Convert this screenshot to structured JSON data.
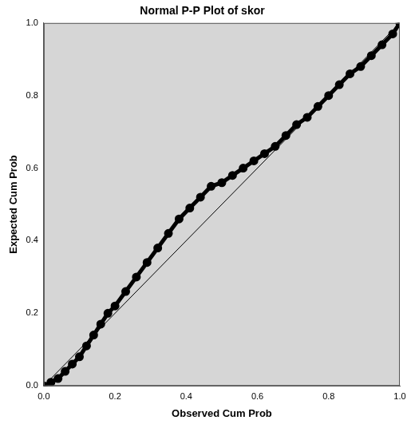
{
  "chart_data": {
    "type": "scatter",
    "title": "Normal P-P Plot of skor",
    "x_label": "Observed Cum Prob",
    "y_label": "Expected Cum Prob",
    "xlim": [
      0,
      1
    ],
    "ylim": [
      0,
      1
    ],
    "xticks": [
      {
        "value": 0,
        "label": "0.0"
      },
      0.2,
      0.4,
      0.6,
      0.8,
      {
        "value": 1,
        "label": "1.0"
      }
    ],
    "yticks": [
      {
        "value": 0,
        "label": "0.0"
      },
      0.2,
      0.4,
      0.6,
      0.8,
      {
        "value": 1,
        "label": "1.0"
      }
    ],
    "grid": false,
    "series": [
      {
        "color": "#000000",
        "marker": "circle",
        "line_style": "solid",
        "x": [
          0,
          0.02,
          0.04,
          0.06,
          0.08,
          0.1,
          0.12,
          0.14,
          0.16,
          0.18,
          0.2,
          0.23,
          0.26,
          0.29,
          0.32,
          0.35,
          0.38,
          0.41,
          0.44,
          0.47,
          0.5,
          0.53,
          0.56,
          0.59,
          0.62,
          0.65,
          0.68,
          0.71,
          0.74,
          0.77,
          0.8,
          0.83,
          0.86,
          0.89,
          0.92,
          0.95,
          0.98,
          1
        ],
        "values": [
          0,
          0.01,
          0.02,
          0.04,
          0.06,
          0.08,
          0.11,
          0.14,
          0.17,
          0.2,
          0.22,
          0.26,
          0.3,
          0.34,
          0.38,
          0.42,
          0.46,
          0.49,
          0.52,
          0.55,
          0.56,
          0.58,
          0.6,
          0.62,
          0.64,
          0.66,
          0.69,
          0.72,
          0.74,
          0.77,
          0.8,
          0.83,
          0.86,
          0.88,
          0.91,
          0.94,
          0.97,
          1
        ]
      },
      {
        "color": "#000000",
        "type": "line",
        "line_style": "solid",
        "x": [
          0,
          1
        ],
        "values": [
          0,
          1
        ]
      }
    ]
  }
}
